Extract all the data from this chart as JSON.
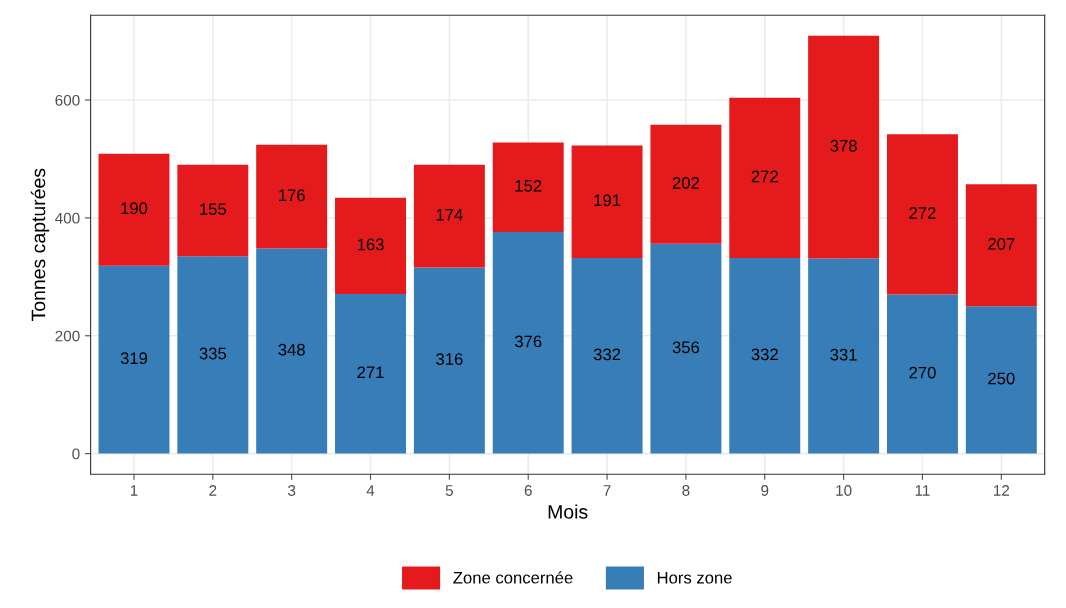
{
  "chart_data": {
    "type": "bar",
    "stacked": true,
    "xlabel": "Mois",
    "ylabel": "Tonnes capturées",
    "categories": [
      "1",
      "2",
      "3",
      "4",
      "5",
      "6",
      "7",
      "8",
      "9",
      "10",
      "11",
      "12"
    ],
    "series": [
      {
        "name": "Hors zone",
        "color": "#377eb8",
        "values": [
          319,
          335,
          348,
          271,
          316,
          376,
          332,
          356,
          332,
          331,
          270,
          250
        ]
      },
      {
        "name": "Zone concernée",
        "color": "#e41a1c",
        "values": [
          190,
          155,
          176,
          163,
          174,
          152,
          191,
          202,
          272,
          378,
          272,
          207
        ]
      }
    ],
    "ylim": [
      -35,
      744
    ],
    "yticks": [
      0,
      200,
      400,
      600
    ],
    "grid": true,
    "legend": "bottom",
    "data_labels": true
  }
}
